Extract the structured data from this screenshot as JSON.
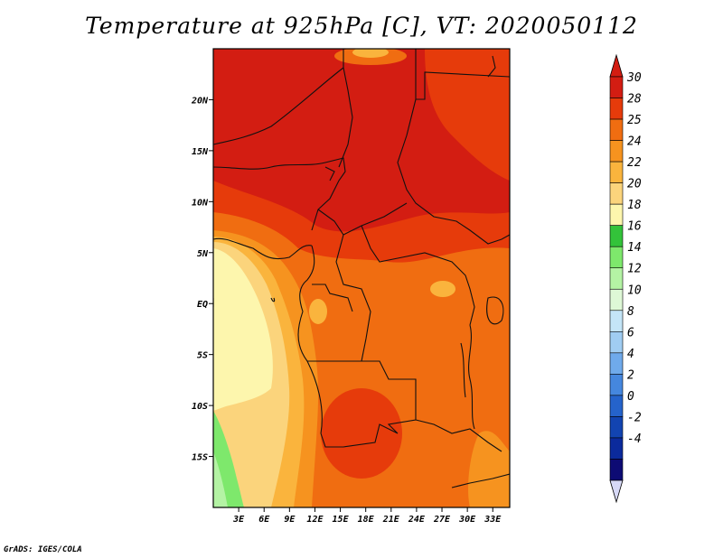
{
  "title": "Temperature at 925hPa [C], VT: 2020050112",
  "footer": "GrADS: IGES/COLA",
  "map": {
    "lon_range": [
      0,
      35
    ],
    "lat_range": [
      -20,
      25
    ],
    "lat_ticks": [
      {
        "value": 20,
        "label": "20N"
      },
      {
        "value": 15,
        "label": "15N"
      },
      {
        "value": 10,
        "label": "10N"
      },
      {
        "value": 5,
        "label": "5N"
      },
      {
        "value": 0,
        "label": "EQ"
      },
      {
        "value": -5,
        "label": "5S"
      },
      {
        "value": -10,
        "label": "10S"
      },
      {
        "value": -15,
        "label": "15S"
      }
    ],
    "lon_ticks": [
      {
        "value": 3,
        "label": "3E"
      },
      {
        "value": 6,
        "label": "6E"
      },
      {
        "value": 9,
        "label": "9E"
      },
      {
        "value": 12,
        "label": "12E"
      },
      {
        "value": 15,
        "label": "15E"
      },
      {
        "value": 18,
        "label": "18E"
      },
      {
        "value": 21,
        "label": "21E"
      },
      {
        "value": 24,
        "label": "24E"
      },
      {
        "value": 27,
        "label": "27E"
      },
      {
        "value": 30,
        "label": "30E"
      },
      {
        "value": 33,
        "label": "33E"
      }
    ]
  },
  "colorbar": {
    "labels": [
      "30",
      "28",
      "25",
      "24",
      "22",
      "20",
      "18",
      "16",
      "14",
      "12",
      "10",
      "8",
      "6",
      "4",
      "2",
      "0",
      "-2",
      "-4"
    ],
    "colors": [
      "#d31d12",
      "#e63b0b",
      "#f06d11",
      "#f6931f",
      "#fab43d",
      "#fbd47c",
      "#fdf6ad",
      "#33c33a",
      "#7ee86c",
      "#b4f3a4",
      "#def8d6",
      "#c4e5f7",
      "#a0cdf2",
      "#6faaeb",
      "#4587de",
      "#2563cb",
      "#1244b1",
      "#0b2a9c",
      "#0d0b74"
    ],
    "top_arrow_color": "#d31d12",
    "bottom_arrow_color": "#d7d9f7"
  }
}
